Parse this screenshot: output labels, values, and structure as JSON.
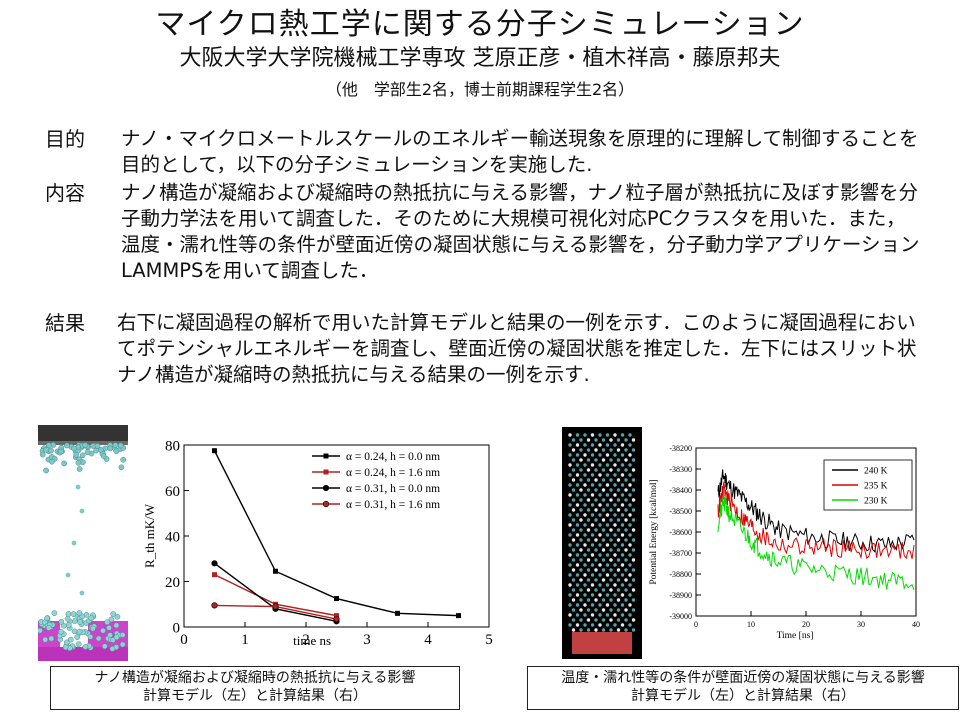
{
  "header": {
    "title": "マイクロ熱工学に関する分子シミュレーション",
    "authors": "大阪大学大学院機械工学専攻 芝原正彦・植木祥高・藤原邦夫",
    "note": "（他　学部生2名，博士前期課程学生2名）"
  },
  "sections": [
    {
      "label": "目的",
      "text": "ナノ・マイクロメートルスケールのエネルギー輸送現象を原理的に理解して制御することを目的として，以下の分子シミュレーションを実施した."
    },
    {
      "label": "内容",
      "text": "ナノ構造が凝縮および凝縮時の熱抵抗に与える影響，ナノ粒子層が熱抵抗に及ぼす影響を分子動力学法を用いて調査した．そのために大規模可視化対応PCクラスタを用いた．また，温度・濡れ性等の条件が壁面近傍の凝固状態に与える影響を，分子動力学アプリケーションLAMMPSを用いて調査した．"
    },
    {
      "label": "結果",
      "text": "右下に凝固過程の解析で用いた計算モデルと結果の一例を示す．このように凝固過程においてポテンシャルエネルギーを調査し、壁面近傍の凝固状態を推定した．左下にはスリット状ナノ構造が凝縮時の熱抵抗に与える結果の一例を示す."
    }
  ],
  "captions": {
    "left": {
      "line1": "ナノ構造が凝縮および凝縮時の熱抵抗に与える影響",
      "line2": "計算モデル（左）と計算結果（右）"
    },
    "right": {
      "line1": "温度・濡れ性等の条件が壁面近傍の凝固状態に与える影響",
      "line2": "計算モデル（左）と計算結果（右）"
    }
  },
  "chart_data": [
    {
      "type": "line",
      "xlabel": "time ns",
      "ylabel": "R_th mK/W",
      "xlim": [
        0,
        5
      ],
      "ylim": [
        0,
        80
      ],
      "xticks": [
        "0",
        "1",
        "2",
        "3",
        "4",
        "5"
      ],
      "yticks": [
        "0",
        "20",
        "40",
        "60",
        "80"
      ],
      "legend_position": "top-right",
      "series": [
        {
          "name": "α = 0.24, h = 0.0 nm",
          "color": "#000000",
          "marker": "square",
          "x": [
            0.5,
            1.5,
            2.5,
            3.5,
            4.5
          ],
          "y": [
            77.5,
            24.5,
            12.5,
            6,
            5
          ]
        },
        {
          "name": "α = 0.24, h = 1.6 nm",
          "color": "#b22222",
          "marker": "square",
          "x": [
            0.5,
            1.5,
            2.5
          ],
          "y": [
            23,
            10,
            5
          ]
        },
        {
          "name": "α = 0.31, h = 0.0 nm",
          "color": "#000000",
          "marker": "circle",
          "x": [
            0.5,
            1.5,
            2.5
          ],
          "y": [
            28,
            8,
            2.5
          ]
        },
        {
          "name": "α = 0.31, h = 1.6 nm",
          "color": "#b22222",
          "marker": "circle",
          "x": [
            0.5,
            1.5,
            2.5
          ],
          "y": [
            9.5,
            9,
            3.5
          ]
        }
      ]
    },
    {
      "type": "line",
      "xlabel": "Time [ns]",
      "ylabel": "Potential Energy [kcal/mol]",
      "xlim": [
        0,
        40
      ],
      "ylim": [
        -39000,
        -38200
      ],
      "xticks": [
        "0",
        "10",
        "20",
        "30",
        "40"
      ],
      "yticks": [
        "-38200",
        "-38300",
        "-38400",
        "-38500",
        "-38600",
        "-38700",
        "-38800",
        "-38900",
        "-39000"
      ],
      "legend_position": "top-right",
      "series": [
        {
          "name": "240 K",
          "color": "#000000",
          "x": [
            4,
            5,
            6,
            8,
            10,
            12,
            15,
            20,
            25,
            30,
            35,
            40
          ],
          "y": [
            -38420,
            -38330,
            -38380,
            -38430,
            -38480,
            -38530,
            -38590,
            -38620,
            -38640,
            -38650,
            -38660,
            -38640
          ]
        },
        {
          "name": "235 K",
          "color": "#e00000",
          "x": [
            4,
            5,
            6,
            8,
            10,
            12,
            15,
            20,
            25,
            30,
            35,
            40
          ],
          "y": [
            -38500,
            -38400,
            -38450,
            -38520,
            -38570,
            -38620,
            -38660,
            -38670,
            -38675,
            -38680,
            -38690,
            -38690
          ]
        },
        {
          "name": "230 K",
          "color": "#00dd00",
          "x": [
            4,
            5,
            6,
            8,
            10,
            12,
            15,
            20,
            25,
            30,
            35,
            40
          ],
          "y": [
            -38560,
            -38460,
            -38510,
            -38580,
            -38640,
            -38690,
            -38740,
            -38770,
            -38790,
            -38810,
            -38830,
            -38840
          ]
        }
      ]
    }
  ]
}
